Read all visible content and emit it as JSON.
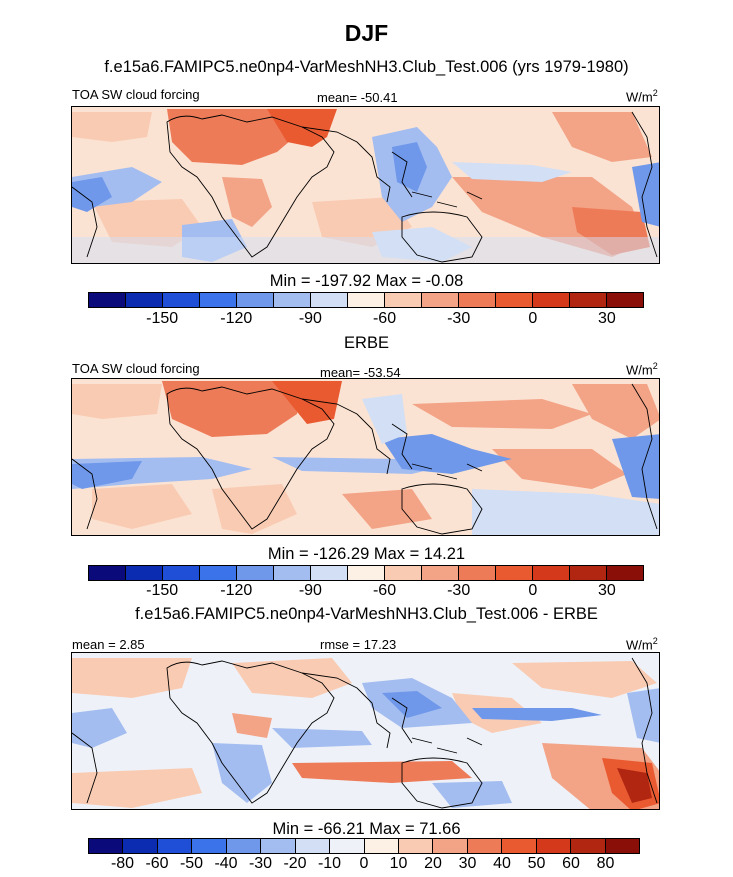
{
  "title": "DJF",
  "panel1": {
    "header": "f.e15a6.FAMIPC5.ne0np4-VarMeshNH3.Club_Test.006 (yrs 1979-1980)",
    "left": "TOA SW cloud forcing",
    "center": "mean= -50.41",
    "units": "W/m",
    "units_sup": "2",
    "stats": "Min = -197.92 Max =  -0.08"
  },
  "panel2": {
    "header": "ERBE",
    "left": "TOA SW cloud forcing",
    "center": "mean= -53.54",
    "units": "W/m",
    "units_sup": "2",
    "stats": "Min = -126.29 Max =  14.21"
  },
  "panel3": {
    "header": "f.e15a6.FAMIPC5.ne0np4-VarMeshNH3.Club_Test.006 - ERBE",
    "left": "mean =   2.85",
    "center": "rmse =  17.23",
    "units": "W/m",
    "units_sup": "2",
    "stats": "Min = -66.21 Max =  71.66"
  },
  "colorbar_main": {
    "colors": [
      "#0a0a7a",
      "#0b2bb0",
      "#1f4fd6",
      "#3a73ea",
      "#6f98ea",
      "#a4bdf0",
      "#d2dff5",
      "#fcf1e4",
      "#f9cbb3",
      "#f3a386",
      "#ee7b58",
      "#ea5a31",
      "#d5391c",
      "#b02611",
      "#8a0f08"
    ],
    "ticks": [
      "-150",
      "-120",
      "-90",
      "-60",
      "-30",
      "0",
      "30"
    ]
  },
  "colorbar_diff": {
    "colors": [
      "#0a0a7a",
      "#0b2bb0",
      "#1f4fd6",
      "#3a73ea",
      "#6f98ea",
      "#a4bdf0",
      "#d2dff5",
      "#eef2f8",
      "#fcf1e4",
      "#f9cbb3",
      "#f3a386",
      "#ee7b58",
      "#ea5a31",
      "#d5391c",
      "#b02611",
      "#8a0f08"
    ],
    "ticks": [
      "-80",
      "-60",
      "-50",
      "-40",
      "-30",
      "-20",
      "-10",
      "0",
      "10",
      "20",
      "30",
      "40",
      "50",
      "60",
      "80"
    ]
  },
  "coastline_color": "#000000"
}
